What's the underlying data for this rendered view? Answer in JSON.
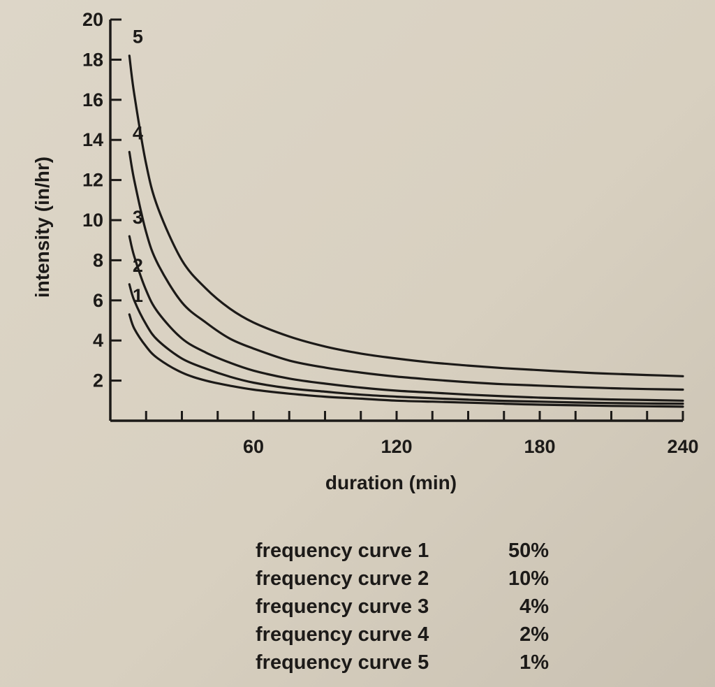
{
  "chart_data": {
    "type": "line",
    "title": "",
    "xlabel": "duration (min)",
    "ylabel": "intensity (in/hr)",
    "xlim": [
      0,
      240
    ],
    "ylim": [
      0,
      20
    ],
    "x_ticks": [
      60,
      120,
      180,
      240
    ],
    "y_ticks": [
      2,
      4,
      6,
      8,
      10,
      12,
      14,
      16,
      18,
      20
    ],
    "grid": false,
    "x": [
      8,
      10,
      15,
      20,
      30,
      40,
      50,
      60,
      75,
      90,
      105,
      120,
      135,
      150,
      165,
      180,
      195,
      210,
      225,
      240
    ],
    "series": [
      {
        "name": "1",
        "values": [
          5.3,
          4.6,
          3.7,
          3.1,
          2.4,
          2.0,
          1.75,
          1.55,
          1.35,
          1.2,
          1.1,
          1.0,
          0.95,
          0.9,
          0.85,
          0.8,
          0.77,
          0.74,
          0.72,
          0.7
        ]
      },
      {
        "name": "2",
        "values": [
          6.8,
          6.0,
          4.8,
          4.0,
          3.1,
          2.6,
          2.2,
          1.9,
          1.62,
          1.45,
          1.3,
          1.2,
          1.12,
          1.05,
          0.99,
          0.95,
          0.91,
          0.88,
          0.86,
          0.85
        ]
      },
      {
        "name": "3",
        "values": [
          9.2,
          8.2,
          6.5,
          5.4,
          4.1,
          3.4,
          2.9,
          2.5,
          2.1,
          1.85,
          1.65,
          1.5,
          1.4,
          1.3,
          1.22,
          1.15,
          1.1,
          1.06,
          1.03,
          1.0
        ]
      },
      {
        "name": "4",
        "values": [
          13.4,
          12.0,
          9.4,
          7.8,
          5.9,
          4.9,
          4.1,
          3.6,
          3.0,
          2.65,
          2.4,
          2.2,
          2.05,
          1.92,
          1.82,
          1.75,
          1.68,
          1.62,
          1.58,
          1.55
        ]
      },
      {
        "name": "5",
        "values": [
          18.2,
          16.3,
          12.8,
          10.6,
          8.0,
          6.6,
          5.6,
          4.9,
          4.2,
          3.7,
          3.35,
          3.1,
          2.9,
          2.75,
          2.62,
          2.52,
          2.42,
          2.34,
          2.28,
          2.22
        ]
      }
    ]
  },
  "legend": [
    {
      "label": "frequency curve 1",
      "value": "50%"
    },
    {
      "label": "frequency curve 2",
      "value": "10%"
    },
    {
      "label": "frequency curve 3",
      "value": "4%"
    },
    {
      "label": "frequency curve 4",
      "value": "2%"
    },
    {
      "label": "frequency curve 5",
      "value": "1%"
    }
  ],
  "colors": {
    "ink": "#1c1a18",
    "paper": "#d9d2c3"
  }
}
